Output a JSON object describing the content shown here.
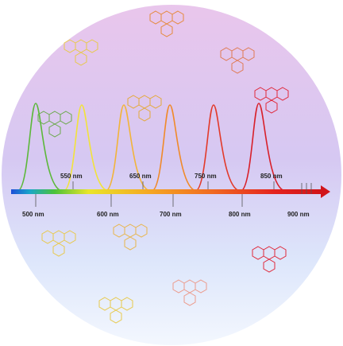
{
  "axis": {
    "labels_below": [
      "500 nm",
      "600 nm",
      "700 nm",
      "800 nm",
      "900 nm"
    ],
    "labels_above": [
      "550 nm",
      "650 nm",
      "750 nm",
      "850 nm"
    ]
  }
}
